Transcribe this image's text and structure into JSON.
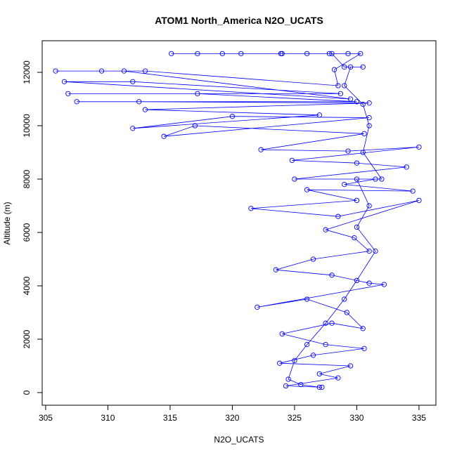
{
  "chart_data": {
    "type": "line",
    "markers": "circle",
    "color": "#0000ff",
    "title": "ATOM1 North_America N2O_UCATS",
    "xlabel": "N2O_UCATS",
    "ylabel": "Altitude (m)",
    "x": [
      327,
      325.5,
      324.5,
      325,
      326,
      327.5,
      329,
      330,
      331.5,
      330,
      331,
      330,
      332,
      330.5,
      331,
      330.5,
      329,
      329.5,
      330.5,
      329,
      328,
      326,
      324,
      320.7,
      317.2,
      315.1,
      319.2,
      323.9,
      327.8,
      329.3,
      330.3,
      328.2,
      328.5,
      313,
      305.8,
      309.5,
      311.3,
      329.5,
      306.5,
      312,
      328.7,
      306.8,
      317.2,
      330,
      307.5,
      312.5,
      331,
      313,
      327,
      312,
      320,
      331,
      314.5,
      317,
      330.6,
      322.3,
      329.3,
      335,
      324.8,
      330,
      334,
      325,
      331.5,
      329,
      334.5,
      326,
      330,
      321.5,
      328.5,
      335,
      327.5,
      329.8,
      331,
      326.5,
      323.5,
      328,
      331,
      332.2,
      322,
      326,
      329.2,
      330.5,
      328,
      324,
      327.5,
      330.6,
      326.5,
      323.8,
      329.5,
      327,
      328.5,
      324.3,
      327.2
    ],
    "y": [
      200,
      300,
      500,
      1200,
      1800,
      2600,
      3500,
      4200,
      5300,
      6200,
      7000,
      8000,
      8000,
      9000,
      10000,
      10800,
      11500,
      12200,
      12200,
      12200,
      12700,
      12700,
      12700,
      12700,
      12700,
      12700,
      12700,
      12700,
      12700,
      12700,
      12700,
      12100,
      11500,
      12050,
      12050,
      12050,
      12050,
      11000,
      11650,
      11650,
      11200,
      11200,
      11200,
      10900,
      10900,
      10900,
      10850,
      10600,
      10400,
      9900,
      10350,
      10300,
      9600,
      10000,
      9700,
      9100,
      9050,
      9200,
      8700,
      8600,
      8450,
      8000,
      8000,
      7800,
      7550,
      7600,
      7200,
      6900,
      6600,
      7200,
      6100,
      5800,
      5300,
      5000,
      4600,
      4400,
      4100,
      4050,
      3200,
      3500,
      3000,
      2400,
      2600,
      2200,
      1800,
      1650,
      1400,
      1100,
      1000,
      700,
      550,
      250,
      200
    ],
    "xlim": [
      304.72,
      336.36
    ],
    "ylim": [
      -474,
      13184
    ],
    "xticks": [
      305,
      310,
      315,
      320,
      325,
      330,
      335
    ],
    "yticks": [
      0,
      2000,
      4000,
      6000,
      8000,
      10000,
      12000
    ]
  }
}
